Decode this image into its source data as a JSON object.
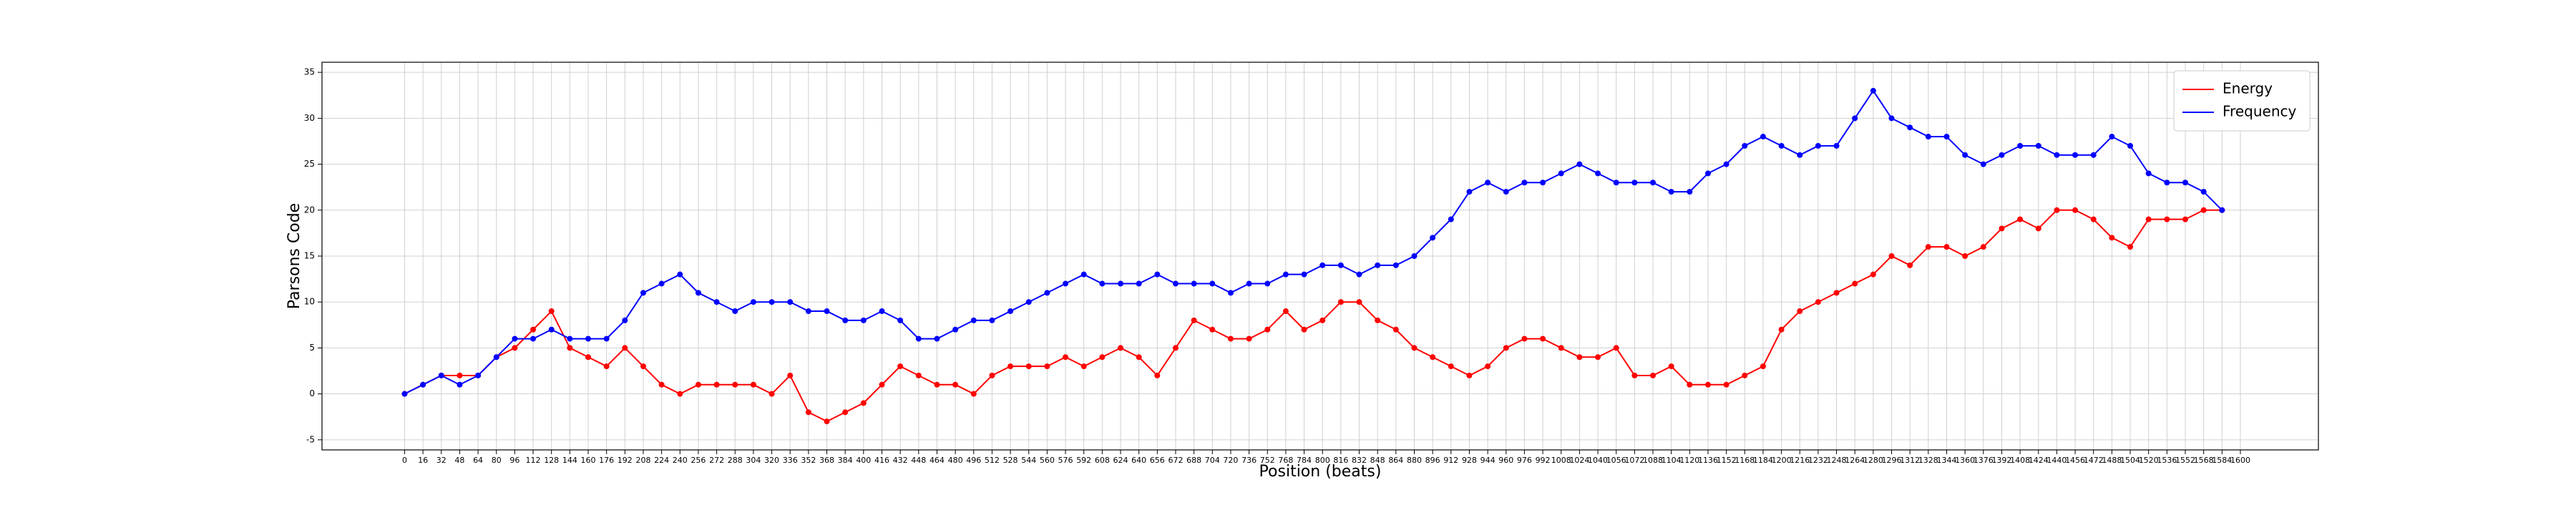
{
  "chart_data": {
    "type": "line",
    "xlabel": "Position (beats)",
    "ylabel": "Parsons Code",
    "x": [
      0,
      16,
      32,
      48,
      64,
      80,
      96,
      112,
      128,
      144,
      160,
      176,
      192,
      208,
      224,
      240,
      256,
      272,
      288,
      304,
      320,
      336,
      352,
      368,
      384,
      400,
      416,
      432,
      448,
      464,
      480,
      496,
      512,
      528,
      544,
      560,
      576,
      592,
      608,
      624,
      640,
      656,
      672,
      688,
      704,
      720,
      736,
      752,
      768,
      784,
      800,
      816,
      832,
      848,
      864,
      880,
      896,
      912,
      928,
      944,
      960,
      976,
      992,
      1008,
      1024,
      1040,
      1056,
      1072,
      1088,
      1104,
      1120,
      1136,
      1152,
      1168,
      1184,
      1200,
      1216,
      1232,
      1248,
      1264,
      1280,
      1296,
      1312,
      1328,
      1344,
      1360,
      1376,
      1392,
      1408,
      1424,
      1440,
      1456,
      1472,
      1488,
      1504,
      1520,
      1536,
      1552,
      1568,
      1584
    ],
    "series": [
      {
        "name": "Energy",
        "color": "#ff0000",
        "values": [
          0,
          1,
          2,
          2,
          2,
          4,
          5,
          7,
          9,
          5,
          4,
          3,
          5,
          3,
          1,
          0,
          1,
          1,
          1,
          1,
          0,
          2,
          -2,
          -3,
          -2,
          -1,
          1,
          3,
          2,
          1,
          1,
          0,
          2,
          3,
          3,
          3,
          4,
          3,
          4,
          5,
          4,
          2,
          5,
          8,
          7,
          6,
          6,
          7,
          9,
          7,
          8,
          10,
          10,
          8,
          7,
          5,
          4,
          3,
          2,
          3,
          5,
          6,
          6,
          5,
          4,
          4,
          5,
          2,
          2,
          3,
          1,
          1,
          1,
          2,
          3,
          7,
          9,
          10,
          11,
          12,
          13,
          15,
          14,
          16,
          16,
          15,
          16,
          18,
          19,
          18,
          20,
          20,
          19,
          17,
          16,
          19,
          19,
          19,
          20,
          20
        ]
      },
      {
        "name": "Frequency",
        "color": "#0000ff",
        "values": [
          0,
          1,
          2,
          1,
          2,
          4,
          6,
          6,
          7,
          6,
          6,
          6,
          8,
          11,
          12,
          13,
          11,
          10,
          9,
          10,
          10,
          10,
          9,
          9,
          8,
          8,
          9,
          8,
          6,
          6,
          7,
          8,
          8,
          9,
          10,
          11,
          12,
          13,
          12,
          12,
          12,
          13,
          12,
          12,
          12,
          11,
          12,
          12,
          13,
          13,
          14,
          14,
          13,
          14,
          14,
          15,
          17,
          19,
          22,
          23,
          22,
          23,
          23,
          24,
          25,
          24,
          23,
          23,
          23,
          22,
          22,
          24,
          25,
          27,
          28,
          27,
          26,
          27,
          27,
          30,
          33,
          30,
          29,
          28,
          28,
          26,
          25,
          26,
          27,
          27,
          26,
          26,
          26,
          28,
          27,
          24,
          23,
          23,
          22,
          20
        ]
      }
    ],
    "xlim": [
      -72,
      1668
    ],
    "ylim": [
      -6.1,
      36.1
    ],
    "xticks": [
      0,
      16,
      32,
      48,
      64,
      80,
      96,
      112,
      128,
      144,
      160,
      176,
      192,
      208,
      224,
      240,
      256,
      272,
      288,
      304,
      320,
      336,
      352,
      368,
      384,
      400,
      416,
      432,
      448,
      464,
      480,
      496,
      512,
      528,
      544,
      560,
      576,
      592,
      608,
      624,
      640,
      656,
      672,
      688,
      704,
      720,
      736,
      752,
      768,
      784,
      800,
      816,
      832,
      848,
      864,
      880,
      896,
      912,
      928,
      944,
      960,
      976,
      992,
      1008,
      1024,
      1040,
      1056,
      1072,
      1088,
      1104,
      1120,
      1136,
      1152,
      1168,
      1184,
      1200,
      1216,
      1232,
      1248,
      1264,
      1280,
      1296,
      1312,
      1328,
      1344,
      1360,
      1376,
      1392,
      1408,
      1424,
      1440,
      1456,
      1472,
      1488,
      1504,
      1520,
      1536,
      1552,
      1568,
      1584,
      1600
    ],
    "yticks": [
      -5,
      0,
      5,
      10,
      15,
      20,
      25,
      30,
      35
    ],
    "grid": true,
    "legend": "upper right"
  }
}
